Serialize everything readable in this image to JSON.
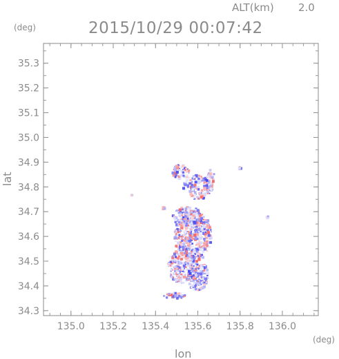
{
  "header": {
    "alt_label": "ALT(km)",
    "alt_value": "2.0",
    "timestamp": "2015/10/29 00:07:42",
    "y_unit": "(deg)",
    "x_unit": "(deg)"
  },
  "chart_data": {
    "type": "heatmap",
    "title": "2015/10/29 00:07:42",
    "xlabel": "lon",
    "ylabel": "lat",
    "xlim": [
      134.87,
      136.17
    ],
    "ylim": [
      34.28,
      35.38
    ],
    "xticks": [
      135.0,
      135.2,
      135.4,
      135.6,
      135.8,
      136.0
    ],
    "yticks": [
      34.3,
      34.4,
      34.5,
      34.6,
      34.7,
      34.8,
      34.9,
      35.0,
      35.1,
      35.2,
      35.3
    ],
    "xtick_labels": [
      "135.0",
      "135.2",
      "135.4",
      "135.6",
      "135.8",
      "136.0"
    ],
    "ytick_labels": [
      "34.3",
      "34.4",
      "34.5",
      "34.6",
      "34.7",
      "34.8",
      "34.9",
      "35.0",
      "35.1",
      "35.2",
      "35.3"
    ],
    "grid": false,
    "colors": {
      "positive": "#f04040",
      "negative": "#4040f0",
      "weak": "#d8d8f4"
    },
    "clusters": [
      {
        "lon": 135.58,
        "lat": 34.6,
        "rlon": 0.09,
        "rlat": 0.1,
        "n": 520
      },
      {
        "lon": 135.52,
        "lat": 34.48,
        "rlon": 0.06,
        "rlat": 0.07,
        "n": 220
      },
      {
        "lon": 135.6,
        "lat": 34.44,
        "rlon": 0.05,
        "rlat": 0.06,
        "n": 180
      },
      {
        "lon": 135.55,
        "lat": 34.68,
        "rlon": 0.07,
        "rlat": 0.04,
        "n": 160
      },
      {
        "lon": 135.6,
        "lat": 34.8,
        "rlon": 0.07,
        "rlat": 0.05,
        "n": 150
      },
      {
        "lon": 135.52,
        "lat": 34.86,
        "rlon": 0.04,
        "rlat": 0.03,
        "n": 60
      },
      {
        "lon": 135.49,
        "lat": 34.36,
        "rlon": 0.05,
        "rlat": 0.012,
        "n": 50
      },
      {
        "lon": 135.66,
        "lat": 34.84,
        "rlon": 0.02,
        "rlat": 0.03,
        "n": 30
      },
      {
        "lon": 135.8,
        "lat": 34.876,
        "rlon": 0.008,
        "rlat": 0.006,
        "n": 10
      },
      {
        "lon": 135.93,
        "lat": 34.678,
        "rlon": 0.006,
        "rlat": 0.005,
        "n": 8
      },
      {
        "lon": 135.29,
        "lat": 34.765,
        "rlon": 0.005,
        "rlat": 0.004,
        "n": 4
      },
      {
        "lon": 135.44,
        "lat": 34.72,
        "rlon": 0.005,
        "rlat": 0.01,
        "n": 6
      }
    ]
  }
}
